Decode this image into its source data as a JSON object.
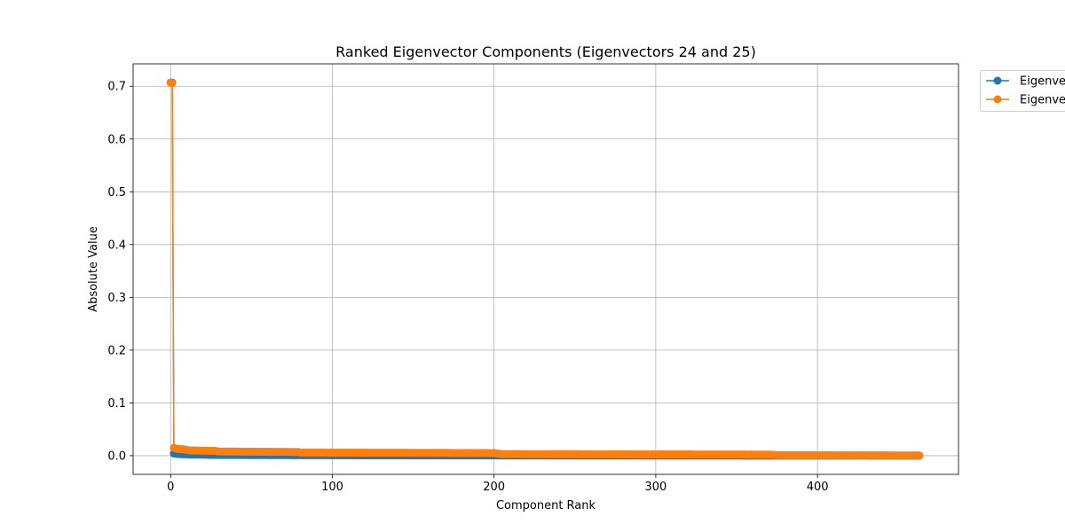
{
  "chart_data": {
    "type": "line",
    "title": "Ranked Eigenvector Components (Eigenvectors 24 and 25)",
    "xlabel": "Component Rank",
    "ylabel": "Absolute Value",
    "xlim": [
      -23.2,
      487.2
    ],
    "ylim": [
      -0.0354,
      0.7424
    ],
    "xticks": [
      0,
      100,
      200,
      300,
      400
    ],
    "yticks": [
      0.0,
      0.1,
      0.2,
      0.3,
      0.4,
      0.5,
      0.6,
      0.7
    ],
    "grid": true,
    "legend_position": "outside-top-right",
    "n_points": 464,
    "series": [
      {
        "name": "Eigenvec",
        "color": "#1f77b4",
        "marker": "circle",
        "points": [
          [
            0,
            0.707
          ],
          [
            1,
            0.707
          ],
          [
            2,
            0.004
          ],
          [
            5,
            0.003
          ],
          [
            10,
            0.0025
          ],
          [
            20,
            0.002
          ],
          [
            25,
            0.0015
          ],
          [
            50,
            0.0012
          ],
          [
            80,
            0.001
          ],
          [
            120,
            0.0008
          ],
          [
            150,
            0.0007
          ],
          [
            200,
            0.0005
          ],
          [
            205,
            0.0003
          ],
          [
            250,
            0.0003
          ],
          [
            300,
            0.0002
          ],
          [
            350,
            0.0002
          ],
          [
            375,
            0.0001
          ],
          [
            420,
            0.0001
          ],
          [
            463,
            0.0
          ]
        ]
      },
      {
        "name": "Eigenve",
        "color": "#ff7f0e",
        "marker": "circle",
        "points": [
          [
            0,
            0.707
          ],
          [
            1,
            0.706
          ],
          [
            2,
            0.015
          ],
          [
            4,
            0.013
          ],
          [
            8,
            0.012
          ],
          [
            12,
            0.01
          ],
          [
            28,
            0.009
          ],
          [
            29,
            0.008
          ],
          [
            79,
            0.007
          ],
          [
            80,
            0.006
          ],
          [
            200,
            0.005
          ],
          [
            205,
            0.003
          ],
          [
            370,
            0.002
          ],
          [
            376,
            0.001
          ],
          [
            463,
            0.0005
          ]
        ]
      }
    ]
  }
}
